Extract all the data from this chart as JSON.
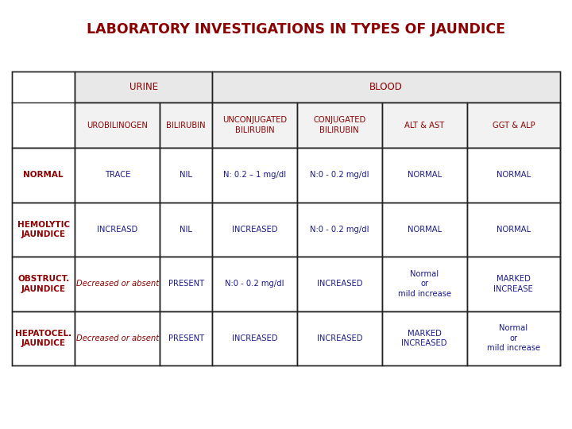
{
  "title": "LABORATORY INVESTIGATIONS IN TYPES OF JAUNDICE",
  "title_color": "#8B0000",
  "title_bg": "#cce0ec",
  "title_border": "#7a9ab0",
  "bg_color": "#ffffff",
  "header1_color": "#8B0000",
  "header2": [
    "UROBILINOGEN",
    "BILIRUBIN",
    "UNCONJUGATED\nBILIRUBIN",
    "CONJUGATED\nBILIRUBIN",
    "ALT & AST",
    "GGT & ALP"
  ],
  "header2_color": "#8B0000",
  "row_labels": [
    "NORMAL",
    "HEMOLYTIC\nJAUNDICE",
    "OBSTRUCT.\nJAUNDICE",
    "HEPATOCEL.\nJAUNDICE"
  ],
  "row_label_color": "#8B0000",
  "rows": [
    [
      "TRACE",
      "NIL",
      "N: 0.2 – 1 mg/dl",
      "N:0 - 0.2 mg/dl",
      "NORMAL",
      "NORMAL"
    ],
    [
      "INCREASD",
      "NIL",
      "INCREASED",
      "N:0 - 0.2 mg/dl",
      "NORMAL",
      "NORMAL"
    ],
    [
      "Decreased or absent",
      "PRESENT",
      "N:0 - 0.2 mg/dl",
      "INCREASED",
      "Normal\nor\nmild increase",
      "MARKED\nINCREASE"
    ],
    [
      "Decreased or absent",
      "PRESENT",
      "INCREASED",
      "INCREASED",
      "MARKED\nINCREASED",
      "Normal\nor\nmild increase"
    ]
  ],
  "text_colors_rows": [
    [
      "#1a1a8c",
      "#1a1a8c",
      "#1a1a8c",
      "#1a1a8c",
      "#1a1a8c",
      "#1a1a8c"
    ],
    [
      "#1a1a8c",
      "#1a1a8c",
      "#1a1a8c",
      "#1a1a8c",
      "#1a1a8c",
      "#1a1a8c"
    ],
    [
      "#8B0000",
      "#1a1a8c",
      "#1a1a8c",
      "#1a1a8c",
      "#1a1a8c",
      "#1a1a8c"
    ],
    [
      "#8B0000",
      "#1a1a8c",
      "#1a1a8c",
      "#1a1a8c",
      "#1a1a8c",
      "#1a1a8c"
    ]
  ],
  "italic_rows": [
    [
      false,
      false,
      false,
      false,
      false,
      false
    ],
    [
      false,
      false,
      false,
      false,
      false,
      false
    ],
    [
      true,
      false,
      false,
      false,
      false,
      false
    ],
    [
      true,
      false,
      false,
      false,
      false,
      false
    ]
  ],
  "table_line_color": "#222222",
  "header_fill": "#e8e8e8",
  "subheader_fill": "#f2f2f2"
}
